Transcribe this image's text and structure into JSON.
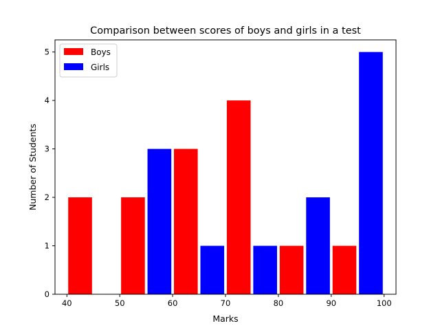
{
  "chart_data": {
    "type": "bar",
    "title": "Comparison between scores of boys and girls in a test",
    "xlabel": "Marks",
    "ylabel": "Number of Students",
    "xlim": [
      37.75,
      102.25
    ],
    "ylim": [
      0,
      5.25
    ],
    "xticks": [
      "40",
      "50",
      "60",
      "70",
      "80",
      "90",
      "100"
    ],
    "yticks": [
      "0",
      "1",
      "2",
      "3",
      "4",
      "5"
    ],
    "grid": false,
    "legend": "top-left",
    "bar_width": 4.5,
    "series": [
      {
        "name": "Boys",
        "color": "#ff0000",
        "x": [
          42.5,
          52.5,
          62.5,
          72.5,
          82.5,
          92.5
        ],
        "values": [
          2,
          2,
          3,
          4,
          1,
          1
        ]
      },
      {
        "name": "Girls",
        "color": "#0000ff",
        "x": [
          57.5,
          67.5,
          77.5,
          87.5,
          97.5
        ],
        "values": [
          3,
          1,
          1,
          2,
          5
        ]
      }
    ]
  }
}
